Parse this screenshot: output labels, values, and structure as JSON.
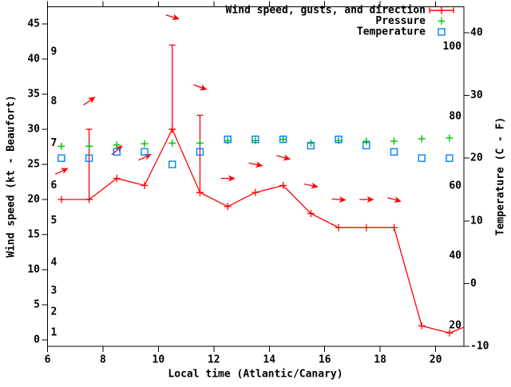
{
  "chart_data": {
    "type": "line",
    "title": "",
    "xlabel": "Local time (Atlantic/Canary)",
    "ylabel_left": "Wind speed (kt - Beaufort)",
    "ylabel_right": "Temperature (C - F)",
    "x_range_hours": [
      6,
      21.02
    ],
    "y_left_range_kt": [
      -0.9,
      47.4
    ],
    "y_right_range_c": [
      -10,
      40.2
    ],
    "grid": "off",
    "legend_position": "top-right-inside",
    "x_ticks": [
      "6",
      "8",
      "10",
      "12",
      "14",
      "16",
      "18",
      "20"
    ],
    "x_tick_values": [
      6,
      8,
      10,
      12,
      14,
      16,
      18,
      20
    ],
    "y_ticks_kt": [
      "0",
      "5",
      "10",
      "15",
      "20",
      "25",
      "30",
      "35",
      "40",
      "45"
    ],
    "y_tick_values_kt": [
      0,
      5,
      10,
      15,
      20,
      25,
      30,
      35,
      40,
      45
    ],
    "y2_ticks_c": [
      "-10",
      "0",
      "10",
      "20",
      "30",
      "40"
    ],
    "y2_tick_values_c": [
      -10,
      0,
      10,
      20,
      30,
      40
    ],
    "beaufort_inner_labels": [
      {
        "label": "1",
        "kt": 1
      },
      {
        "label": "2",
        "kt": 4
      },
      {
        "label": "3",
        "kt": 7
      },
      {
        "label": "4",
        "kt": 11
      },
      {
        "label": "5",
        "kt": 17
      },
      {
        "label": "6",
        "kt": 22
      },
      {
        "label": "7",
        "kt": 28
      },
      {
        "label": "8",
        "kt": 34
      },
      {
        "label": "9",
        "kt": 41
      }
    ],
    "fahrenheit_inner_labels": [
      {
        "label": "20",
        "f": 20
      },
      {
        "label": "40",
        "f": 40
      },
      {
        "label": "60",
        "f": 60
      },
      {
        "label": "80",
        "f": 80
      },
      {
        "label": "100",
        "f": 100
      }
    ],
    "legend": [
      {
        "label": "Wind speed, gusts, and direction",
        "marker": "errorbar",
        "color": "#ff0000"
      },
      {
        "label": "Pressure",
        "marker": "plus",
        "color": "#00c000"
      },
      {
        "label": "Temperature",
        "marker": "square",
        "color": "#0080ff"
      }
    ],
    "times": [
      6.5,
      7.5,
      8.5,
      9.5,
      10.5,
      11.5,
      12.5,
      13.5,
      14.5,
      15.5,
      16.5,
      17.5,
      18.5,
      19.5,
      20.5
    ],
    "wind": {
      "speed_kt": [
        20,
        20,
        23,
        22,
        30,
        21,
        19,
        21,
        22,
        18,
        16,
        16,
        16,
        2,
        1
      ],
      "gust_kt": [
        null,
        30,
        null,
        null,
        42,
        32,
        null,
        null,
        null,
        null,
        null,
        null,
        null,
        null,
        null
      ],
      "direction_arrow_deg_ccw_from_east": [
        25,
        35,
        40,
        25,
        -17,
        -20,
        0,
        -12,
        -15,
        -12,
        -4,
        0,
        -15,
        null,
        null
      ],
      "arrow_offset_kt_above_max": 4,
      "line_exit_segment": {
        "t": 21.02,
        "kt": 1.8
      }
    },
    "temperature_c": [
      20,
      20,
      21,
      21,
      19,
      21,
      23,
      23,
      23,
      22,
      23,
      22,
      21,
      20,
      20
    ],
    "pressure": {
      "axis": "unlabeled (no visible scale)",
      "y_as_c_axis_equivalent": [
        21.9,
        21.9,
        22.1,
        22.3,
        22.4,
        22.4,
        22.8,
        22.8,
        23.0,
        22.4,
        22.8,
        22.7,
        22.7,
        23.1,
        23.2
      ]
    },
    "colors": {
      "wind": "#ff0000",
      "pressure": "#00c000",
      "temperature": "#0080ff",
      "axis": "#000000",
      "background": "#ffffff"
    }
  }
}
